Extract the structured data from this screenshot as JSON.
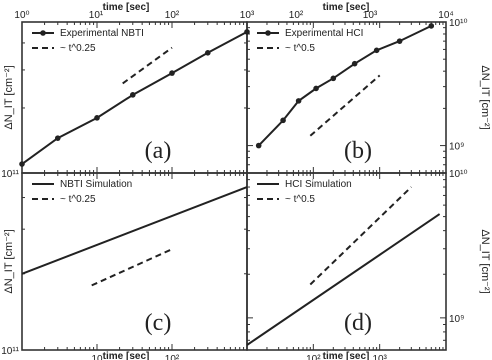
{
  "figure": {
    "top_axis_title": "time [sec]",
    "bottom_axis_title": "time [sec]",
    "x_axis": {
      "type": "log",
      "tick_labels": [
        "10",
        "10²",
        "10³"
      ]
    },
    "top_tick_labels": [
      "10⁰",
      "10¹",
      "10²",
      "10³",
      "10²",
      "10³",
      "10⁴"
    ]
  },
  "chart_data": [
    {
      "panel": "(a)",
      "type": "line",
      "x_scale": "log",
      "y_scale": "log",
      "xlim": [
        1,
        1000
      ],
      "ylim": [
        100000000000.0,
        500000000000.0
      ],
      "y_axis_title": "ΔN_IT [cm⁻²]",
      "y_tick_labels": [
        "10¹¹"
      ],
      "legend": "top-left",
      "series": [
        {
          "name": "Experimental NBTI",
          "style": "solid-marker",
          "x": [
            1,
            3,
            10,
            30,
            100,
            300,
            1000
          ],
          "y": [
            110000000000.0,
            145000000000.0,
            180000000000.0,
            230000000000.0,
            290000000000.0,
            360000000000.0,
            450000000000.0
          ]
        },
        {
          "name": "~ t^0.25",
          "style": "dashed",
          "x": [
            22,
            100
          ],
          "y": [
            260000000000.0,
            380000000000.0
          ]
        }
      ]
    },
    {
      "panel": "(b)",
      "type": "line",
      "x_scale": "log",
      "y_scale": "log",
      "xlim": [
        10,
        10000
      ],
      "ylim": [
        600000000.0,
        10000000000.0
      ],
      "y_axis_title": "ΔN_IT [cm⁻²]",
      "y_tick_labels": [
        "10⁹",
        "10¹⁰"
      ],
      "legend": "top-left",
      "series": [
        {
          "name": "Experimental HCI",
          "style": "solid-marker",
          "x": [
            15,
            35,
            60,
            110,
            200,
            420,
            900,
            2000,
            6000
          ],
          "y": [
            1000000000.0,
            1600000000.0,
            2300000000.0,
            2900000000.0,
            3500000000.0,
            4600000000.0,
            5900000000.0,
            7000000000.0,
            9300000000.0
          ]
        },
        {
          "name": "~ t^0.5",
          "style": "dashed",
          "x": [
            90,
            1000
          ],
          "y": [
            1200000000.0,
            3700000000.0
          ]
        }
      ]
    },
    {
      "panel": "(c)",
      "type": "line",
      "x_scale": "log",
      "y_scale": "log",
      "xlim": [
        1,
        1000
      ],
      "ylim": [
        100000000000.0,
        500000000000.0
      ],
      "y_axis_title": "ΔN_IT [cm⁻²]",
      "y_tick_labels": [
        "10¹¹"
      ],
      "x_tick_labels": [
        "10",
        "10²"
      ],
      "legend": "top-left",
      "series": [
        {
          "name": "NBTI Simulation",
          "style": "solid",
          "x": [
            1,
            1000
          ],
          "y": [
            200000000000.0,
            440000000000.0
          ]
        },
        {
          "name": "~ t^0.25",
          "style": "dashed",
          "x": [
            8.5,
            100
          ],
          "y": [
            180000000000.0,
            250000000000.0
          ]
        }
      ]
    },
    {
      "panel": "(d)",
      "type": "line",
      "x_scale": "log",
      "y_scale": "log",
      "xlim": [
        10,
        10000
      ],
      "ylim": [
        600000000.0,
        10000000000.0
      ],
      "y_axis_title": "ΔN_IT [cm⁻²]",
      "y_tick_labels": [
        "10⁹",
        "10¹⁰"
      ],
      "x_tick_labels": [
        "10²",
        "10³"
      ],
      "legend": "top-left",
      "series": [
        {
          "name": "HCI Simulation",
          "style": "solid",
          "x": [
            10,
            8000
          ],
          "y": [
            650000000.0,
            5200000000.0
          ]
        },
        {
          "name": "~ t^0.5",
          "style": "dashed",
          "x": [
            90,
            3000
          ],
          "y": [
            1700000000.0,
            8000000000.0
          ]
        }
      ]
    }
  ]
}
